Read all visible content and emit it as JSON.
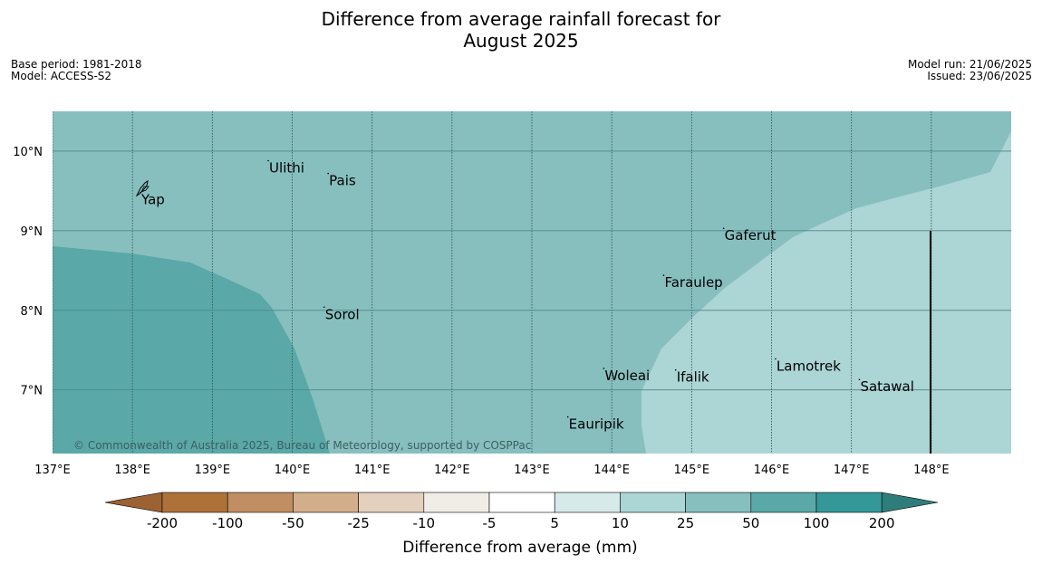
{
  "title": {
    "line1": "Difference from average rainfall forecast for",
    "line2": "August 2025"
  },
  "info": {
    "base_period": "Base period: 1981-2018",
    "model": "Model: ACCESS-S2",
    "model_run": "Model run: 21/06/2025",
    "issued": "Issued: 23/06/2025"
  },
  "map": {
    "lon_range": [
      137,
      149
    ],
    "lat_range": [
      6.2,
      10.5
    ],
    "lon_ticks": [
      {
        "value": 137,
        "label": "137°E"
      },
      {
        "value": 138,
        "label": "138°E"
      },
      {
        "value": 139,
        "label": "139°E"
      },
      {
        "value": 140,
        "label": "140°E"
      },
      {
        "value": 141,
        "label": "141°E"
      },
      {
        "value": 142,
        "label": "142°E"
      },
      {
        "value": 143,
        "label": "143°E"
      },
      {
        "value": 144,
        "label": "144°E"
      },
      {
        "value": 145,
        "label": "145°E"
      },
      {
        "value": 146,
        "label": "146°E"
      },
      {
        "value": 147,
        "label": "147°E"
      },
      {
        "value": 148,
        "label": "148°E"
      }
    ],
    "lat_ticks": [
      {
        "value": 10,
        "label": "10°N"
      },
      {
        "value": 9,
        "label": "9°N"
      },
      {
        "value": 8,
        "label": "8°N"
      },
      {
        "value": 7,
        "label": "7°N"
      }
    ],
    "places": [
      {
        "name": "Yap",
        "lon": 138.1,
        "lat": 9.48
      },
      {
        "name": "Ulithi",
        "lon": 139.7,
        "lat": 9.88
      },
      {
        "name": "Pais",
        "lon": 140.45,
        "lat": 9.72
      },
      {
        "name": "Gaferut",
        "lon": 145.4,
        "lat": 9.03
      },
      {
        "name": "Faraulep",
        "lon": 144.65,
        "lat": 8.44
      },
      {
        "name": "Sorol",
        "lon": 140.4,
        "lat": 8.04
      },
      {
        "name": "Woleai",
        "lon": 143.9,
        "lat": 7.27
      },
      {
        "name": "Ifalik",
        "lon": 144.8,
        "lat": 7.25
      },
      {
        "name": "Lamotrek",
        "lon": 146.05,
        "lat": 7.39
      },
      {
        "name": "Satawal",
        "lon": 147.1,
        "lat": 7.13
      },
      {
        "name": "Eauripik",
        "lon": 143.45,
        "lat": 6.66
      }
    ],
    "colors": {
      "d25_50": "#87bfbf",
      "d50_100": "#5aa8a8",
      "d10_25": "#acd5d5"
    },
    "copyright": "© Commonwealth of Australia 2025, Bureau of Meteorology, supported by COSPPac"
  },
  "legend": {
    "title": "Difference from average (mm)",
    "labels": [
      "-200",
      "-100",
      "-50",
      "-25",
      "-10",
      "-5",
      "5",
      "10",
      "25",
      "50",
      "100",
      "200"
    ],
    "colors": [
      "#ae7239",
      "#c08e62",
      "#d3ae8b",
      "#e4d0bf",
      "#f0ece6",
      "#ffffff",
      "#d6eaea",
      "#acd5d5",
      "#87bfbf",
      "#5aa8a8",
      "#349898"
    ],
    "low_color": "#9c6233",
    "high_color": "#2f7d7b"
  }
}
